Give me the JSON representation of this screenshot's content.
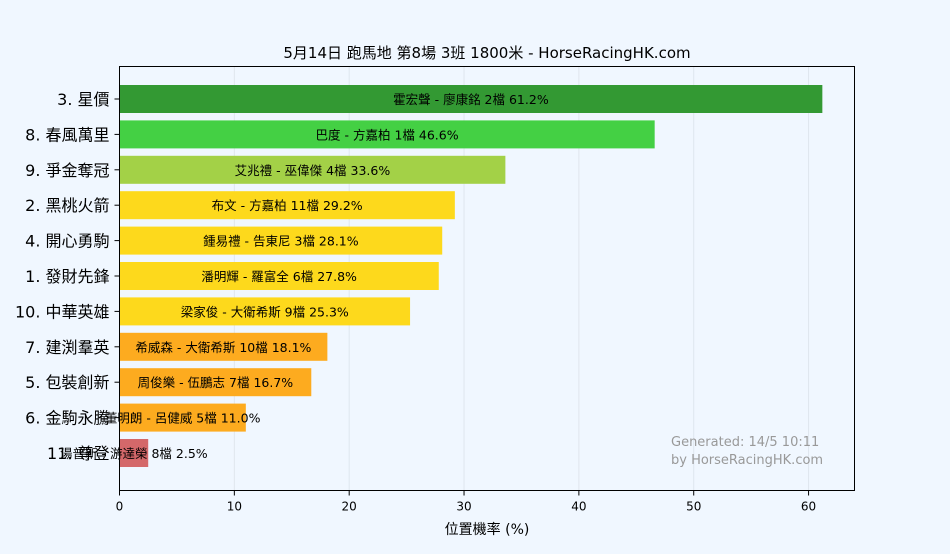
{
  "chart_data": {
    "type": "bar",
    "orientation": "horizontal",
    "title": "5月14日  跑馬地  第8場  3班  1800米 - HorseRacingHK.com",
    "xlabel": "位置機率 (%)",
    "ylabel": "",
    "xlim": [
      0,
      64
    ],
    "xticks": [
      0,
      10,
      20,
      30,
      40,
      50,
      60
    ],
    "grid": true,
    "categories": [
      "3. 星價",
      "8. 春風萬里",
      "9. 爭金奪冠",
      "2. 黑桃火箭",
      "4. 開心勇駒",
      "1. 發財先鋒",
      "10. 中華英雄",
      "7. 建渕羣英",
      "5. 包裝創新",
      "6. 金駒永騰",
      "11. 尊登"
    ],
    "values": [
      61.2,
      46.6,
      33.6,
      29.2,
      28.1,
      27.8,
      25.3,
      18.1,
      16.7,
      11.0,
      2.5
    ],
    "bar_labels": [
      "霍宏聲 - 廖康銘 2檔  61.2%",
      "巴度 - 方嘉柏 1檔  46.6%",
      "艾兆禮 - 巫偉傑 4檔  33.6%",
      "布文 - 方嘉柏 11檔  29.2%",
      "鍾易禮 - 告東尼 3檔  28.1%",
      "潘明輝 - 羅富全 6檔  27.8%",
      "梁家俊 - 大衛希斯 9檔  25.3%",
      "希威森 - 大衛希斯 10檔  18.1%",
      "周俊樂 - 伍鵬志 7檔  16.7%",
      "董明朗 - 呂健威 5檔  11.0%",
      "湯普新 - 游達榮 8檔  2.5%"
    ],
    "colors": [
      "#339933",
      "#44d044",
      "#a3d147",
      "#fdd91c",
      "#fdd91c",
      "#fdd91c",
      "#fdd91c",
      "#fdab1f",
      "#fdab1f",
      "#fdab1f",
      "#d4686a"
    ],
    "annotation": [
      "Generated: 14/5 10:11",
      "by HorseRacingHK.com"
    ]
  }
}
